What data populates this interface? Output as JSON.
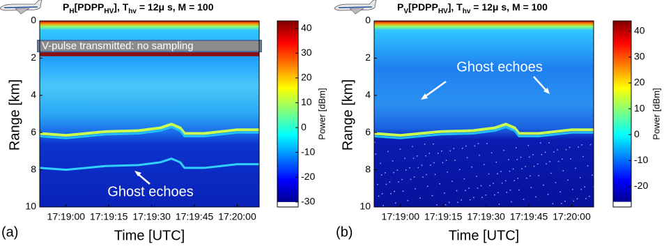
{
  "chart_data": [
    {
      "type": "heatmap",
      "title": [
        {
          "text": "P"
        },
        {
          "text": "H",
          "sub": true
        },
        {
          "text": "[PDPP"
        },
        {
          "text": "HV",
          "sub": true
        },
        {
          "text": "], T"
        },
        {
          "text": "hv",
          "sub": true
        },
        {
          "text": " = 12"
        },
        {
          "text": "μ"
        },
        {
          "text": " s, M = 100"
        }
      ],
      "panel_label": "(a)",
      "xlabel": "Time [UTC]",
      "ylabel": "Range [km]",
      "xticks": [
        "17:19:00",
        "17:19:15",
        "17:19:30",
        "17:19:45",
        "17:20:00"
      ],
      "ylim": [
        0,
        10
      ],
      "yticks": [
        0,
        2,
        4,
        6,
        8,
        10
      ],
      "y_reversed": true,
      "colorbar_label": "Power [dBm]",
      "clim": [
        -32,
        43
      ],
      "cticks": [
        40,
        30,
        20,
        10,
        0,
        -10,
        -20,
        -30
      ],
      "annotations": [
        "V-pulse transmitted: no sampling",
        "Ghost echoes"
      ]
    },
    {
      "type": "heatmap",
      "title": [
        {
          "text": "P"
        },
        {
          "text": "V",
          "sub": true
        },
        {
          "text": "[PDPP"
        },
        {
          "text": "HV",
          "sub": true
        },
        {
          "text": "], T"
        },
        {
          "text": "hv",
          "sub": true
        },
        {
          "text": " = 12"
        },
        {
          "text": "μ"
        },
        {
          "text": " s, M = 100"
        }
      ],
      "panel_label": "(b)",
      "xlabel": "Time [UTC]",
      "ylabel": "Range [km]",
      "xticks": [
        "17:19:00",
        "17:19:15",
        "17:19:30",
        "17:19:45",
        "17:20:00"
      ],
      "ylim": [
        0,
        10
      ],
      "yticks": [
        0,
        2,
        4,
        6,
        8,
        10
      ],
      "y_reversed": true,
      "colorbar_label": "Power [dBm]",
      "clim": [
        -28,
        44
      ],
      "cticks": [
        40,
        30,
        20,
        10,
        0,
        -10,
        -20
      ],
      "annotations": [
        "Ghost echoes"
      ]
    }
  ]
}
